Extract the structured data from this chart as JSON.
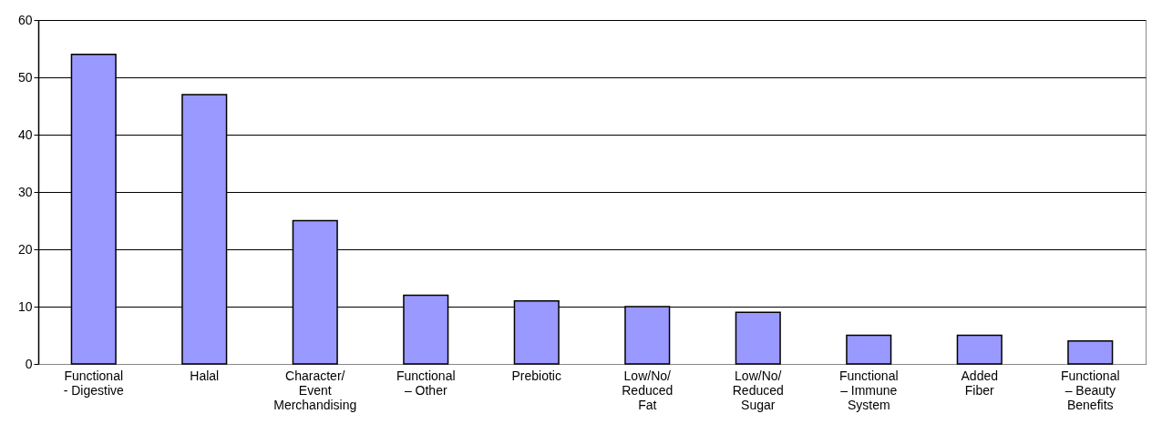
{
  "chart_data": {
    "type": "bar",
    "categories": [
      "Functional - Digestive",
      "Halal",
      "Character/Event Merchandising",
      "Functional – Other",
      "Prebiotic",
      "Low/No/Reduced Fat",
      "Low/No/Reduced Sugar",
      "Functional – Immune System",
      "Added Fiber",
      "Functional – Beauty Benefits"
    ],
    "values": [
      54,
      47,
      25,
      12,
      11,
      10,
      9,
      5,
      5,
      4
    ],
    "color": "#9999ff",
    "ylim": [
      0,
      60
    ],
    "yticks": [
      0,
      10,
      20,
      30,
      40,
      50,
      60
    ],
    "grid": "y"
  }
}
